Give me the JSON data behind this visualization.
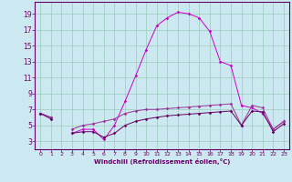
{
  "x": [
    0,
    1,
    2,
    3,
    4,
    5,
    6,
    7,
    8,
    9,
    10,
    11,
    12,
    13,
    14,
    15,
    16,
    17,
    18,
    19,
    20,
    21,
    22,
    23
  ],
  "line1": [
    6.5,
    6.0,
    null,
    4.0,
    4.5,
    4.5,
    3.2,
    5.0,
    8.0,
    11.2,
    14.5,
    17.5,
    18.5,
    19.2,
    19.0,
    18.5,
    16.8,
    13.0,
    12.5,
    7.5,
    7.2,
    6.5,
    4.5,
    5.5
  ],
  "line2": [
    6.5,
    6.0,
    null,
    4.5,
    5.0,
    5.2,
    5.5,
    5.8,
    6.5,
    6.8,
    7.0,
    7.0,
    7.1,
    7.2,
    7.3,
    7.4,
    7.5,
    7.6,
    7.7,
    5.0,
    7.5,
    7.2,
    4.5,
    5.5
  ],
  "line3": [
    6.5,
    5.8,
    null,
    4.0,
    4.2,
    4.2,
    3.5,
    4.0,
    5.0,
    5.5,
    5.8,
    6.0,
    6.2,
    6.3,
    6.4,
    6.5,
    6.6,
    6.7,
    6.8,
    5.0,
    6.8,
    6.7,
    4.2,
    5.2
  ],
  "line_color1": "#cc00cc",
  "line_color2": "#993399",
  "line_color3": "#660066",
  "bg_color": "#cce8f0",
  "grid_color": "#99ccbb",
  "text_color": "#660066",
  "xlabel": "Windchill (Refroidissement éolien,°C)",
  "ylim": [
    2,
    20
  ],
  "xlim": [
    -0.5,
    23.5
  ],
  "yticks": [
    3,
    5,
    7,
    9,
    11,
    13,
    15,
    17,
    19
  ],
  "xticks": [
    0,
    1,
    2,
    3,
    4,
    5,
    6,
    7,
    8,
    9,
    10,
    11,
    12,
    13,
    14,
    15,
    16,
    17,
    18,
    19,
    20,
    21,
    22,
    23
  ]
}
